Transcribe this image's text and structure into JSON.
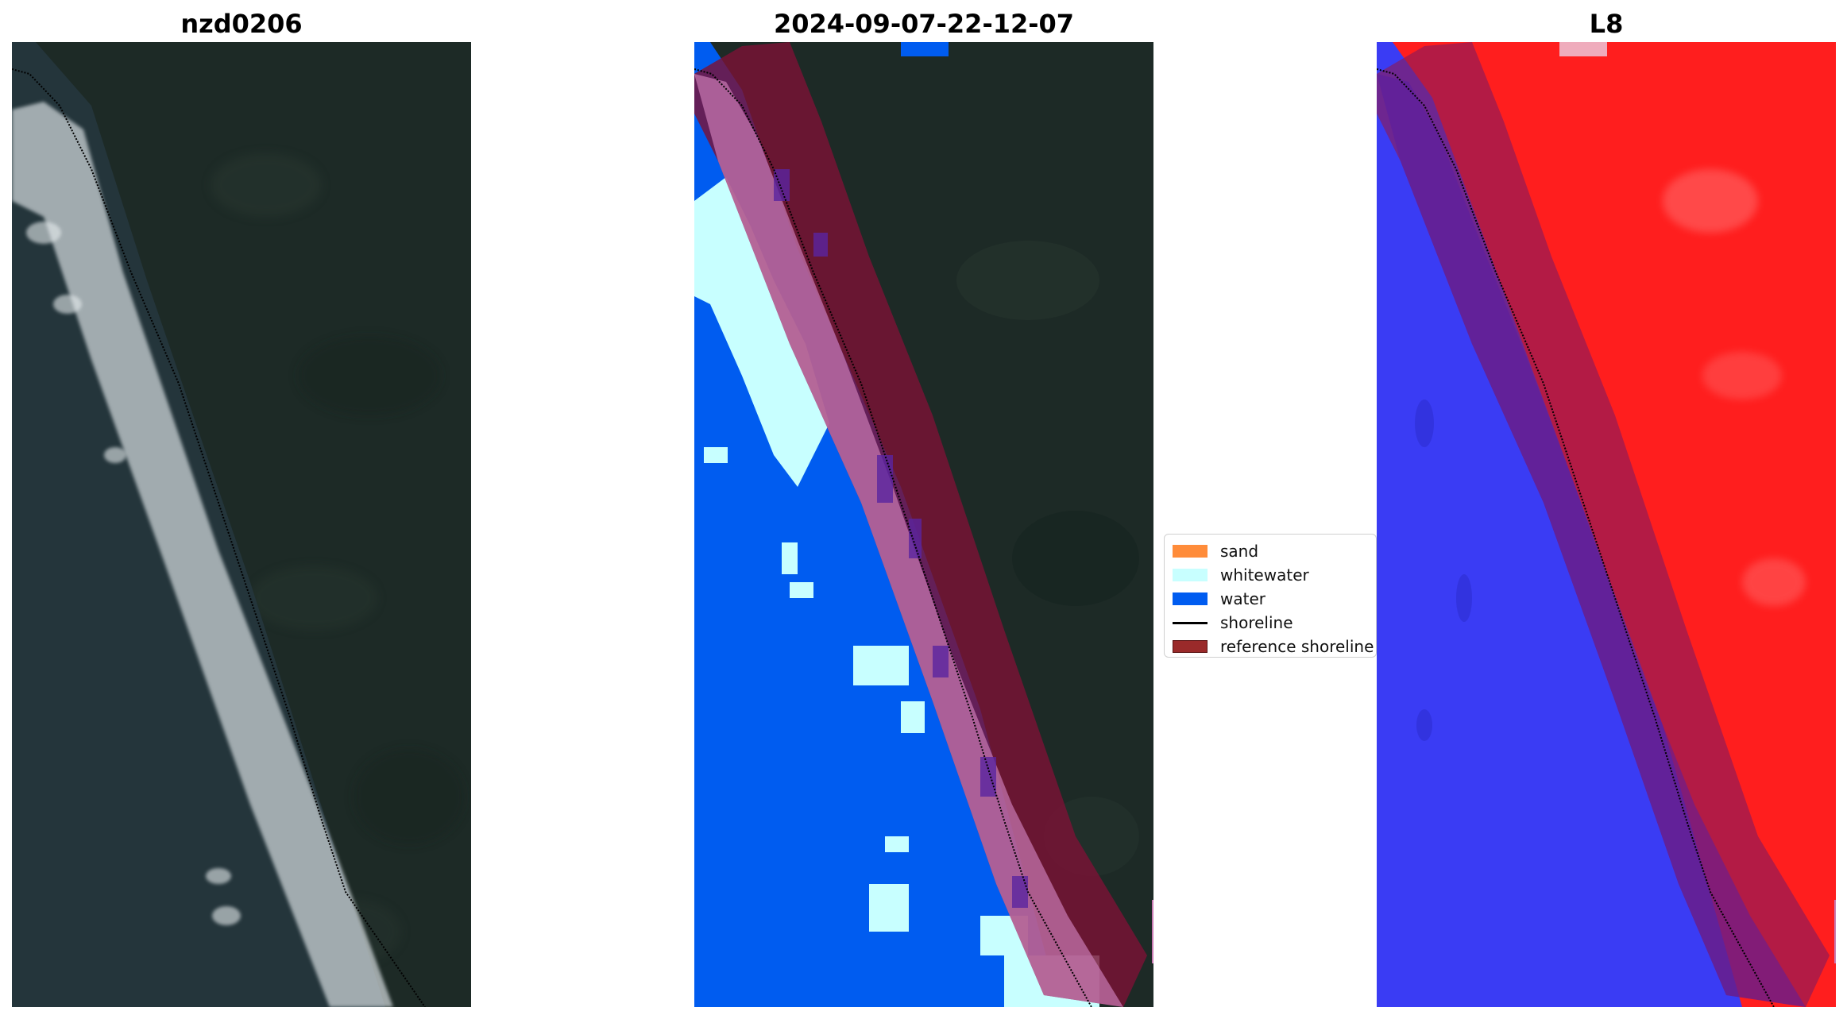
{
  "panels": {
    "rgb": {
      "title": "nzd0206"
    },
    "classified": {
      "title": "2024-09-07-22-12-07"
    },
    "index": {
      "title": "L8"
    }
  },
  "legend": {
    "items": [
      {
        "label": "sand",
        "color": "#ff8c3a",
        "kind": "patch"
      },
      {
        "label": "whitewater",
        "color": "#c8ffff",
        "kind": "patch"
      },
      {
        "label": "water",
        "color": "#005cf0",
        "kind": "patch"
      },
      {
        "label": "shoreline",
        "color": "#000000",
        "kind": "line"
      },
      {
        "label": "reference shoreline",
        "color": "#9a2a2a",
        "kind": "patch"
      }
    ]
  },
  "colors": {
    "land": "#1d2a26",
    "sea": "#24353b",
    "surf": "#d6dde0",
    "water_class": "#005cf0",
    "whitewater_class": "#c8ffff",
    "reference_buffer": "#7a1236",
    "land_index": "#ff1e1e",
    "water_index": "#3a3cf4"
  }
}
